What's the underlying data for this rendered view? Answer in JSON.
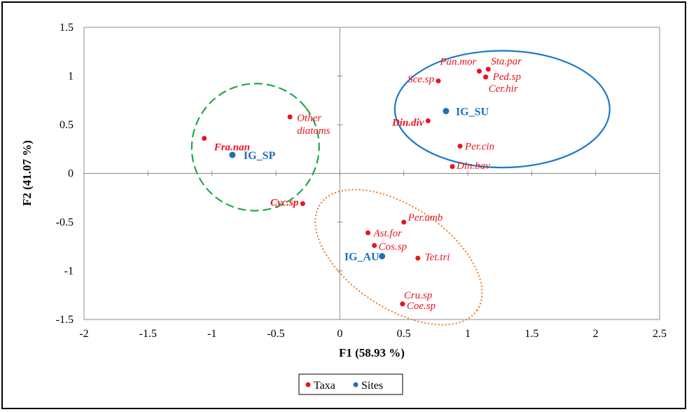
{
  "chart_data": {
    "type": "scatter",
    "xlabel": "F1 (58.93 %)",
    "ylabel": "F2 (41.07 %)",
    "xlim": [
      -2,
      2.5
    ],
    "ylim": [
      -1.5,
      1.5
    ],
    "xticks": [
      -2,
      -1.5,
      -1,
      -0.5,
      0,
      0.5,
      1,
      1.5,
      2,
      2.5
    ],
    "yticks": [
      -1.5,
      -1,
      -0.5,
      0,
      0.5,
      1,
      1.5
    ],
    "xtick_labels": [
      "-2",
      "-1.5",
      "-1",
      "-0.5",
      "0",
      "0.5",
      "1",
      "1.5",
      "2",
      "2.5"
    ],
    "ytick_labels": [
      "-1.5",
      "-1",
      "-0.5",
      "0",
      "0.5",
      "1",
      "1.5"
    ],
    "legend_position": "bottom",
    "grid": false,
    "series": [
      {
        "name": "Taxa",
        "color": "#e8141c",
        "points": [
          {
            "label": "Sta.par",
            "x": 1.16,
            "y": 1.07,
            "bold": false
          },
          {
            "label": "Pan.mor",
            "x": 1.09,
            "y": 1.05,
            "bold": false
          },
          {
            "label": "Ped.sp",
            "x": 1.14,
            "y": 0.99,
            "bold": false
          },
          {
            "label": "Cer.hir",
            "x": 1.14,
            "y": 0.99,
            "bold": false
          },
          {
            "label": "Sce.sp",
            "x": 0.77,
            "y": 0.95,
            "bold": false
          },
          {
            "label": "Din.div",
            "x": 0.69,
            "y": 0.54,
            "bold": true
          },
          {
            "label": "Other diatoms",
            "x": -0.39,
            "y": 0.58,
            "bold": false
          },
          {
            "label": "Fra.nan",
            "x": -1.06,
            "y": 0.36,
            "bold": true
          },
          {
            "label": "Per.cin",
            "x": 0.94,
            "y": 0.28,
            "bold": false
          },
          {
            "label": "Din.bav",
            "x": 0.88,
            "y": 0.07,
            "bold": false
          },
          {
            "label": "Cyc.sp",
            "x": -0.29,
            "y": -0.31,
            "bold": true
          },
          {
            "label": "Per.umb",
            "x": 0.5,
            "y": -0.5,
            "bold": false
          },
          {
            "label": "Ast.for",
            "x": 0.22,
            "y": -0.61,
            "bold": false
          },
          {
            "label": "Cos.sp",
            "x": 0.27,
            "y": -0.74,
            "bold": false
          },
          {
            "label": "Tet.tri",
            "x": 0.61,
            "y": -0.87,
            "bold": false
          },
          {
            "label": "Cru.sp",
            "x": 0.49,
            "y": -1.34,
            "bold": false
          },
          {
            "label": "Coe.sp",
            "x": 0.49,
            "y": -1.34,
            "bold": false
          }
        ]
      },
      {
        "name": "Sites",
        "color": "#1f6fb8",
        "points": [
          {
            "label": "IG_SU",
            "x": 0.83,
            "y": 0.64
          },
          {
            "label": "IG_SP",
            "x": -0.84,
            "y": 0.19
          },
          {
            "label": "IG_AU",
            "x": 0.33,
            "y": -0.85
          }
        ]
      }
    ],
    "groups": [
      {
        "site": "IG_SU",
        "color": "#1f78c8",
        "style": "solid",
        "cx": 1.27,
        "cy": 0.66,
        "rx": 0.84,
        "ry": 0.6
      },
      {
        "site": "IG_SP",
        "color": "#1fa84a",
        "style": "dashed",
        "cx": -0.66,
        "cy": 0.27,
        "rx": 0.5,
        "ry": 0.65,
        "rotate": -38
      },
      {
        "site": "IG_AU",
        "color": "#e87722",
        "style": "dotted",
        "cx": 0.46,
        "cy": -0.86,
        "rx": 0.74,
        "ry": 0.52,
        "rotate": 34
      }
    ]
  },
  "legend": {
    "items": [
      {
        "label": "Taxa",
        "color": "#e8141c"
      },
      {
        "label": "Sites",
        "color": "#1f6fb8"
      }
    ]
  }
}
